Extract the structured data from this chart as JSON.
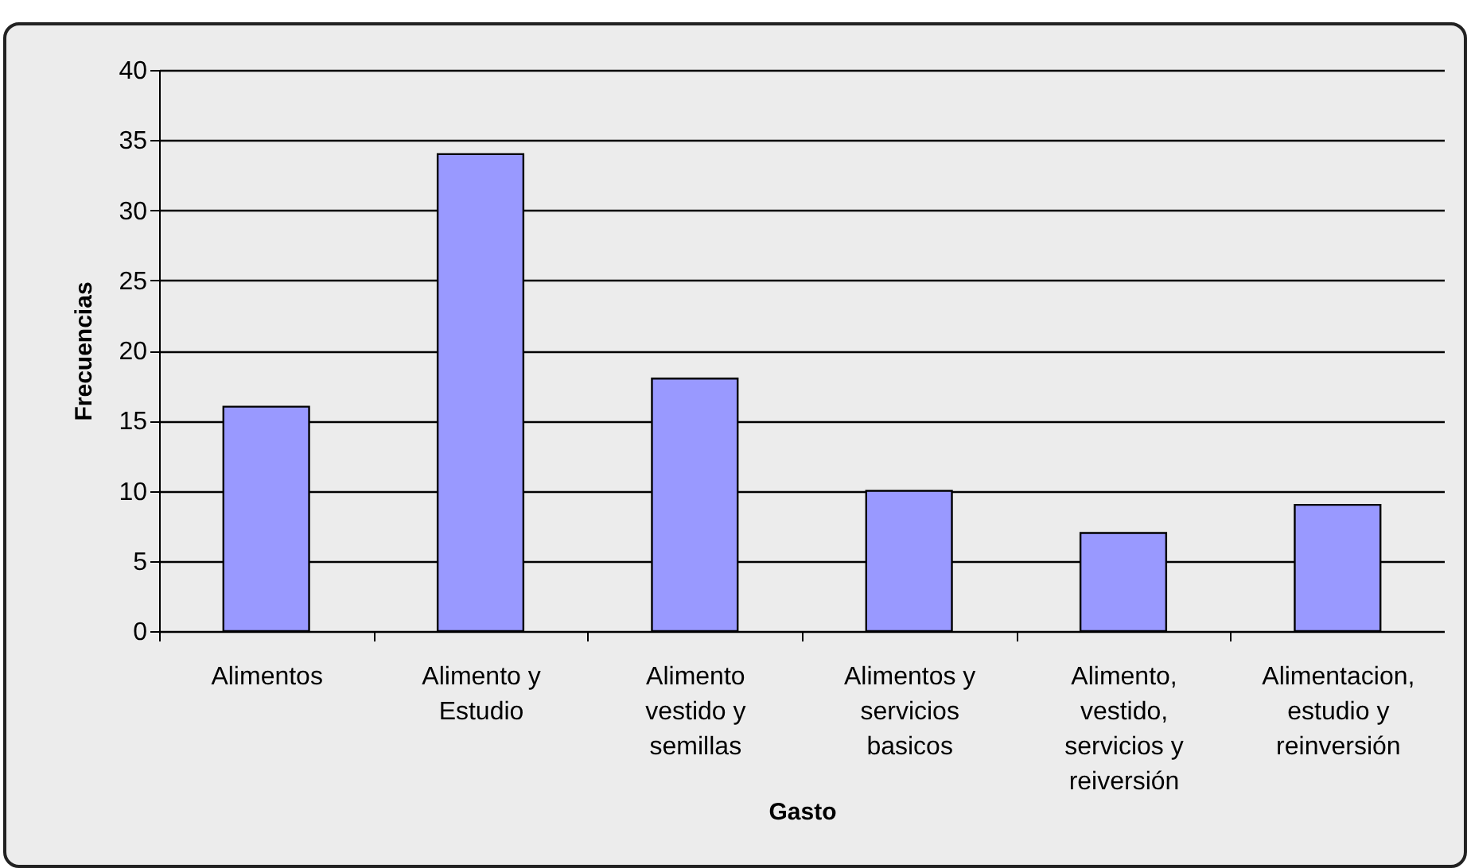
{
  "chart_data": {
    "type": "bar",
    "xlabel": "Gasto",
    "ylabel": "Frecuencias",
    "categories": [
      "Alimentos",
      "Alimento y Estudio",
      "Alimento vestido y semillas",
      "Alimentos y servicios basicos",
      "Alimento, vestido, servicios y reiversión",
      "Alimentacion, estudio y reinversión"
    ],
    "values": [
      16,
      34,
      18,
      10,
      7,
      9
    ],
    "color": "#9999ff",
    "ylim": [
      0,
      40
    ],
    "yticks": [
      0,
      5,
      10,
      15,
      20,
      25,
      30,
      35,
      40
    ],
    "grid": "y"
  }
}
